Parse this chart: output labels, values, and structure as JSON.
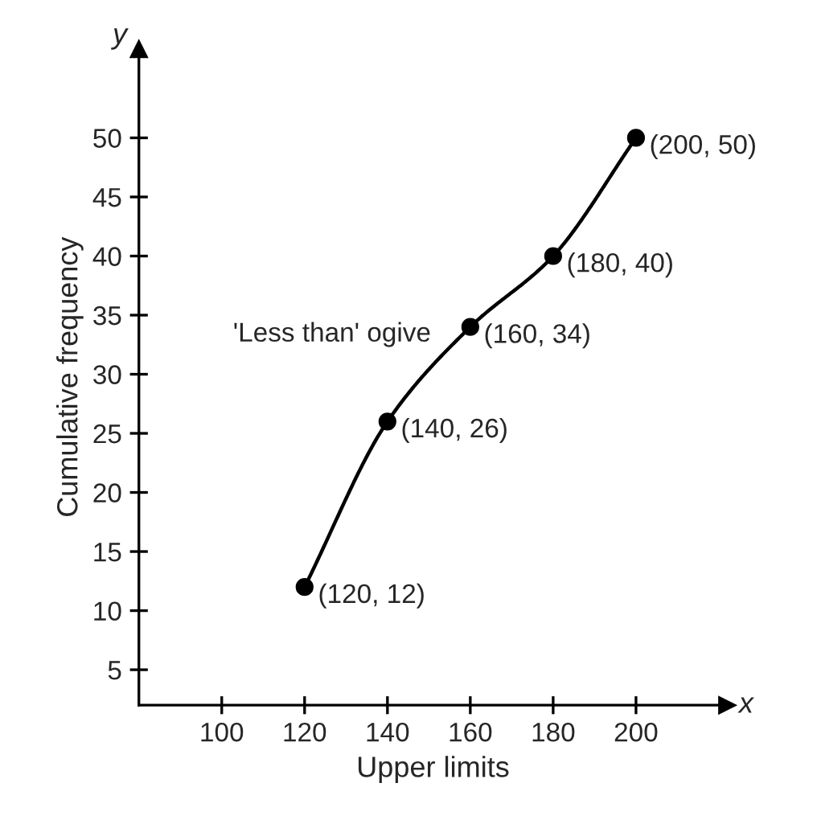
{
  "chart_data": {
    "type": "line",
    "xlabel": "Upper limits",
    "ylabel": "Cumulative frequency",
    "annotations": [
      "'Less than' ogive",
      "x",
      "y"
    ],
    "x": [
      120,
      140,
      160,
      180,
      200
    ],
    "series": [
      {
        "color": "#000000",
        "values": [
          12,
          26,
          34,
          40,
          50
        ],
        "value_labels": [
          "(120, 12)",
          "(140, 26)",
          "(160, 34)",
          "(180, 40)",
          "(200, 50)"
        ]
      }
    ],
    "xlim": [
      80,
      222
    ],
    "ylim": [
      2,
      57.5
    ],
    "xticks": [
      100,
      120,
      140,
      160,
      180,
      200
    ],
    "yticks": [
      5,
      10,
      15,
      20,
      25,
      30,
      35,
      40,
      45,
      50
    ],
    "marker": "circle",
    "line_style": "solid",
    "grid": false,
    "legend": false
  }
}
